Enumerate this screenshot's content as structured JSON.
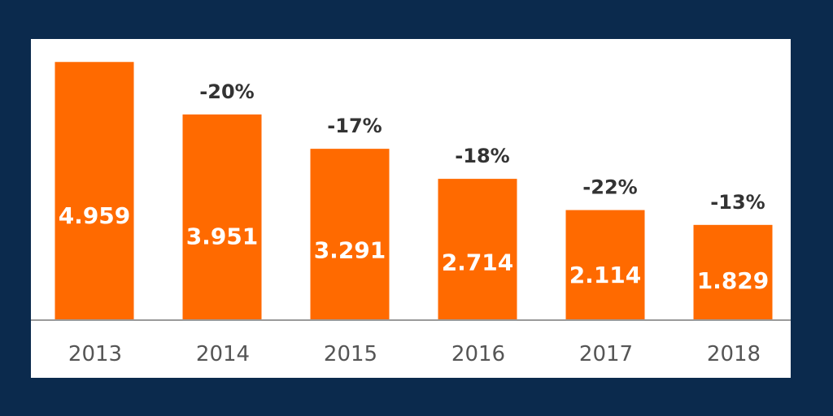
{
  "chart_data": {
    "type": "bar",
    "categories": [
      "2013",
      "2014",
      "2015",
      "2016",
      "2017",
      "2018"
    ],
    "values": [
      4959,
      3951,
      3291,
      2714,
      2114,
      1829
    ],
    "value_labels": [
      "4.959",
      "3.951",
      "3.291",
      "2.714",
      "2.114",
      "1.829"
    ],
    "change_labels": [
      "",
      "-20%",
      "-17%",
      "-18%",
      "-22%",
      "-13%"
    ],
    "title": "",
    "xlabel": "",
    "ylabel": "",
    "ylim": [
      0,
      5400
    ],
    "grid": false,
    "legend": "none",
    "colors": {
      "bar": "#ff6a00",
      "frame": "#0b2a4d",
      "panel": "#ffffff"
    }
  }
}
